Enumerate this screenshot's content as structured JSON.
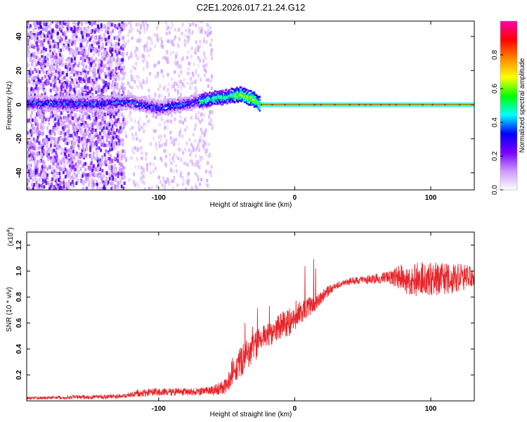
{
  "title": "C2E1.2026.017.21.24.G12",
  "chart_data": [
    {
      "type": "heatmap",
      "title": "C2E1.2026.017.21.24.G12",
      "xlabel": "Height of straight line (km)",
      "ylabel": "Frequency (Hz)",
      "xlim": [
        -197,
        132
      ],
      "ylim": [
        -50,
        49
      ],
      "xticks": [
        -100,
        0,
        100
      ],
      "yticks": [
        -40,
        -20,
        0,
        20,
        40
      ],
      "colorbar": {
        "label": "Normalized spectral amplitude",
        "range": [
          0,
          1
        ],
        "ticks": [
          "0.0",
          "0.2",
          "0.4",
          "0.6",
          "0.8"
        ],
        "ticks_values": [
          0,
          0.2,
          0.4,
          0.6,
          0.8
        ],
        "colormap": [
          "#ffffff",
          "#cc99ff",
          "#7700ff",
          "#0000ff",
          "#00ffff",
          "#00ff00",
          "#ffff00",
          "#ff8800",
          "#ff0000",
          "#ff00aa"
        ]
      },
      "ridge": {
        "description_points_x": [
          -190,
          -150,
          -120,
          -100,
          -80,
          -60,
          -40,
          -30,
          -25,
          0,
          50,
          132
        ],
        "frequency_hz": [
          1,
          0.5,
          1.5,
          -2,
          0.5,
          3.5,
          6,
          3,
          0,
          -1,
          0,
          0
        ]
      },
      "scatter_extent": {
        "dense_x_range": [
          -197,
          -125
        ],
        "sparse_x_range": [
          -125,
          -60
        ]
      }
    },
    {
      "type": "line",
      "xlabel": "Height of straight line (km)",
      "ylabel": "SNR (10 * v/v)",
      "yscale_label": "(x10",
      "yscale_exp": "4",
      "yscale_close": ")",
      "xlim": [
        -197,
        132
      ],
      "ylim": [
        0,
        1.3
      ],
      "xticks": [
        -100,
        0,
        100
      ],
      "yticks": [
        "0.2",
        "0.4",
        "0.6",
        "0.8",
        "1.0",
        "1.2"
      ],
      "yticks_values": [
        0.2,
        0.4,
        0.6,
        0.8,
        1.0,
        1.2
      ],
      "color": "#e8262b",
      "series": [
        {
          "name": "SNR",
          "x": [
            -197,
            -180,
            -160,
            -140,
            -125,
            -115,
            -100,
            -85,
            -70,
            -60,
            -50,
            -45,
            -40,
            -35,
            -30,
            -25,
            -20,
            -15,
            -10,
            -5,
            0,
            5,
            10,
            15,
            20,
            25,
            30,
            35,
            40,
            50,
            60,
            70,
            80,
            90,
            100,
            110,
            120,
            132
          ],
          "values": [
            0.02,
            0.025,
            0.03,
            0.03,
            0.04,
            0.06,
            0.07,
            0.07,
            0.07,
            0.08,
            0.12,
            0.25,
            0.3,
            0.35,
            0.4,
            0.48,
            0.5,
            0.55,
            0.58,
            0.6,
            0.66,
            0.68,
            0.72,
            0.75,
            0.8,
            0.85,
            0.88,
            0.9,
            0.92,
            0.93,
            0.94,
            0.95,
            0.95,
            0.94,
            0.94,
            0.94,
            0.94,
            0.94
          ]
        }
      ],
      "noise_envelope": [
        0.01,
        0.01,
        0.015,
        0.015,
        0.015,
        0.03,
        0.03,
        0.03,
        0.03,
        0.04,
        0.06,
        0.12,
        0.12,
        0.12,
        0.12,
        0.1,
        0.1,
        0.1,
        0.1,
        0.12,
        0.12,
        0.08,
        0.08,
        0.06,
        0.05,
        0.04,
        0.03,
        0.03,
        0.03,
        0.03,
        0.04,
        0.05,
        0.12,
        0.14,
        0.14,
        0.12,
        0.12,
        0.1
      ]
    }
  ]
}
